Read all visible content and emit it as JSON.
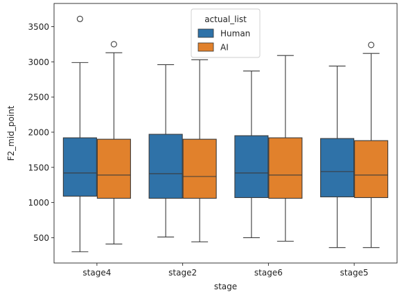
{
  "chart_data": {
    "type": "box",
    "xlabel": "stage",
    "ylabel": "F2_mid_point",
    "categories": [
      "stage4",
      "stage2",
      "stage6",
      "stage5"
    ],
    "ylim": [
      140,
      3830
    ],
    "yticks": [
      500,
      1000,
      1500,
      2000,
      2500,
      3000,
      3500
    ],
    "legend": {
      "title": "actual_list",
      "position": "top-center"
    },
    "series": [
      {
        "name": "Human",
        "color": "#2f72a8",
        "boxes": [
          {
            "whisker_low": 300,
            "q1": 1090,
            "median": 1420,
            "q3": 1920,
            "whisker_high": 2990,
            "outliers": [
              3610
            ]
          },
          {
            "whisker_low": 510,
            "q1": 1060,
            "median": 1410,
            "q3": 1970,
            "whisker_high": 2960,
            "outliers": []
          },
          {
            "whisker_low": 500,
            "q1": 1070,
            "median": 1420,
            "q3": 1950,
            "whisker_high": 2870,
            "outliers": []
          },
          {
            "whisker_low": 360,
            "q1": 1080,
            "median": 1440,
            "q3": 1910,
            "whisker_high": 2940,
            "outliers": []
          }
        ]
      },
      {
        "name": "AI",
        "color": "#e1812c",
        "boxes": [
          {
            "whisker_low": 410,
            "q1": 1060,
            "median": 1390,
            "q3": 1900,
            "whisker_high": 3130,
            "outliers": [
              3250
            ]
          },
          {
            "whisker_low": 440,
            "q1": 1060,
            "median": 1370,
            "q3": 1900,
            "whisker_high": 3030,
            "outliers": []
          },
          {
            "whisker_low": 450,
            "q1": 1060,
            "median": 1390,
            "q3": 1920,
            "whisker_high": 3090,
            "outliers": []
          },
          {
            "whisker_low": 360,
            "q1": 1070,
            "median": 1390,
            "q3": 1880,
            "whisker_high": 3120,
            "outliers": [
              3240
            ]
          }
        ]
      }
    ]
  }
}
